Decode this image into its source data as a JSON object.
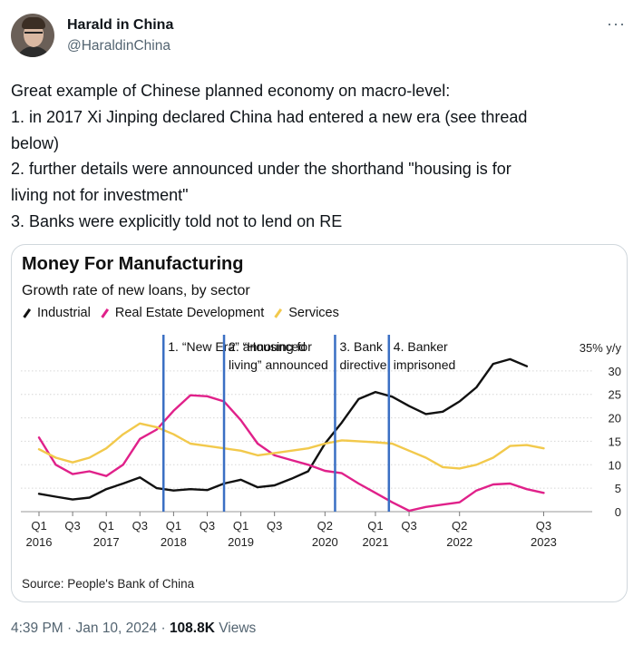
{
  "author": {
    "name": "Harald in China",
    "handle": "@HaraldinChina"
  },
  "more_label": "···",
  "text_lines": [
    "Great example of Chinese planned economy on macro-level:",
    "1. in 2017 Xi Jinping declared China had entered a new era (see thread",
    "below)",
    "2. further details were announced under the shorthand \"housing is for",
    "living not for investment\"",
    "3. Banks were explicitly told not to lend on RE"
  ],
  "meta": {
    "time": "4:39 PM",
    "date": "Jan 10, 2024",
    "views_count": "108.8K",
    "views_label": "Views"
  },
  "colors": {
    "industrial": "#111111",
    "real_estate": "#e0218a",
    "services": "#f2c94c",
    "event_line": "#3a6fc4"
  },
  "chart_data": {
    "type": "line",
    "title": "Money For Manufacturing",
    "subtitle": "Growth rate of new loans, by sector",
    "ylabel": "35% y/y",
    "ylim": [
      0,
      35
    ],
    "yticks": [
      0,
      5,
      10,
      15,
      20,
      25,
      30
    ],
    "x_range": [
      2016.0,
      2023.75
    ],
    "x_ticks": [
      {
        "x": 2016.0,
        "quarter": "Q1",
        "year": "2016"
      },
      {
        "x": 2016.5,
        "quarter": "Q3",
        "year": ""
      },
      {
        "x": 2017.0,
        "quarter": "Q1",
        "year": "2017"
      },
      {
        "x": 2017.5,
        "quarter": "Q3",
        "year": ""
      },
      {
        "x": 2018.0,
        "quarter": "Q1",
        "year": "2018"
      },
      {
        "x": 2018.5,
        "quarter": "Q3",
        "year": ""
      },
      {
        "x": 2019.0,
        "quarter": "Q1",
        "year": "2019"
      },
      {
        "x": 2019.5,
        "quarter": "Q3",
        "year": ""
      },
      {
        "x": 2020.25,
        "quarter": "Q2",
        "year": "2020"
      },
      {
        "x": 2021.0,
        "quarter": "Q1",
        "year": "2021"
      },
      {
        "x": 2021.5,
        "quarter": "Q3",
        "year": ""
      },
      {
        "x": 2022.25,
        "quarter": "Q2",
        "year": "2022"
      },
      {
        "x": 2023.5,
        "quarter": "Q3",
        "year": "2023"
      }
    ],
    "series": [
      {
        "name": "Industrial",
        "color": "#111111",
        "points": [
          [
            2016.0,
            3.8
          ],
          [
            2016.25,
            3.2
          ],
          [
            2016.5,
            2.6
          ],
          [
            2016.75,
            3.0
          ],
          [
            2017.0,
            4.8
          ],
          [
            2017.25,
            6.0
          ],
          [
            2017.5,
            7.3
          ],
          [
            2017.75,
            5.0
          ],
          [
            2018.0,
            4.5
          ],
          [
            2018.25,
            4.8
          ],
          [
            2018.5,
            4.6
          ],
          [
            2018.75,
            6.0
          ],
          [
            2019.0,
            6.8
          ],
          [
            2019.25,
            5.2
          ],
          [
            2019.5,
            5.6
          ],
          [
            2019.75,
            7.0
          ],
          [
            2020.0,
            8.6
          ],
          [
            2020.25,
            14.5
          ],
          [
            2020.5,
            19.0
          ],
          [
            2020.75,
            24.0
          ],
          [
            2021.0,
            25.5
          ],
          [
            2021.25,
            24.5
          ],
          [
            2021.5,
            22.5
          ],
          [
            2021.75,
            20.8
          ],
          [
            2022.0,
            21.3
          ],
          [
            2022.25,
            23.5
          ],
          [
            2022.5,
            26.5
          ],
          [
            2022.75,
            31.5
          ],
          [
            2023.0,
            32.5
          ],
          [
            2023.25,
            31.0
          ]
        ]
      },
      {
        "name": "Real Estate Development",
        "color": "#e0218a",
        "points": [
          [
            2016.0,
            15.8
          ],
          [
            2016.25,
            10.0
          ],
          [
            2016.5,
            8.0
          ],
          [
            2016.75,
            8.6
          ],
          [
            2017.0,
            7.6
          ],
          [
            2017.25,
            10.0
          ],
          [
            2017.5,
            15.5
          ],
          [
            2017.75,
            17.5
          ],
          [
            2018.0,
            21.5
          ],
          [
            2018.25,
            24.8
          ],
          [
            2018.5,
            24.6
          ],
          [
            2018.75,
            23.5
          ],
          [
            2019.0,
            19.5
          ],
          [
            2019.25,
            14.5
          ],
          [
            2019.5,
            12.0
          ],
          [
            2019.75,
            11.0
          ],
          [
            2020.0,
            10.0
          ],
          [
            2020.25,
            8.7
          ],
          [
            2020.5,
            8.2
          ],
          [
            2020.75,
            6.0
          ],
          [
            2021.0,
            4.0
          ],
          [
            2021.25,
            2.0
          ],
          [
            2021.5,
            0.2
          ],
          [
            2021.75,
            1.0
          ],
          [
            2022.0,
            1.5
          ],
          [
            2022.25,
            2.0
          ],
          [
            2022.5,
            4.5
          ],
          [
            2022.75,
            5.8
          ],
          [
            2023.0,
            6.0
          ],
          [
            2023.25,
            4.8
          ],
          [
            2023.5,
            4.0
          ]
        ]
      },
      {
        "name": "Services",
        "color": "#f2c94c",
        "points": [
          [
            2016.0,
            13.3
          ],
          [
            2016.25,
            11.5
          ],
          [
            2016.5,
            10.5
          ],
          [
            2016.75,
            11.5
          ],
          [
            2017.0,
            13.5
          ],
          [
            2017.25,
            16.5
          ],
          [
            2017.5,
            18.8
          ],
          [
            2017.75,
            18.0
          ],
          [
            2018.0,
            16.5
          ],
          [
            2018.25,
            14.5
          ],
          [
            2018.5,
            14.0
          ],
          [
            2018.75,
            13.5
          ],
          [
            2019.0,
            13.0
          ],
          [
            2019.25,
            12.0
          ],
          [
            2019.5,
            12.5
          ],
          [
            2019.75,
            13.0
          ],
          [
            2020.0,
            13.5
          ],
          [
            2020.25,
            14.5
          ],
          [
            2020.5,
            15.2
          ],
          [
            2020.75,
            15.0
          ],
          [
            2021.0,
            14.8
          ],
          [
            2021.25,
            14.5
          ],
          [
            2021.5,
            13.0
          ],
          [
            2021.75,
            11.5
          ],
          [
            2022.0,
            9.5
          ],
          [
            2022.25,
            9.2
          ],
          [
            2022.5,
            10.0
          ],
          [
            2022.75,
            11.5
          ],
          [
            2023.0,
            14.0
          ],
          [
            2023.25,
            14.2
          ],
          [
            2023.5,
            13.5
          ]
        ]
      }
    ],
    "events": [
      {
        "x": 2017.85,
        "lines": [
          "1. “New Era” announced"
        ]
      },
      {
        "x": 2018.75,
        "lines": [
          "2. “Housing for",
          "living” announced"
        ]
      },
      {
        "x": 2020.4,
        "lines": [
          "3. Bank",
          "directive"
        ]
      },
      {
        "x": 2021.2,
        "lines": [
          "4. Banker",
          "imprisoned"
        ]
      }
    ],
    "source": "Source: People's Bank of China"
  }
}
